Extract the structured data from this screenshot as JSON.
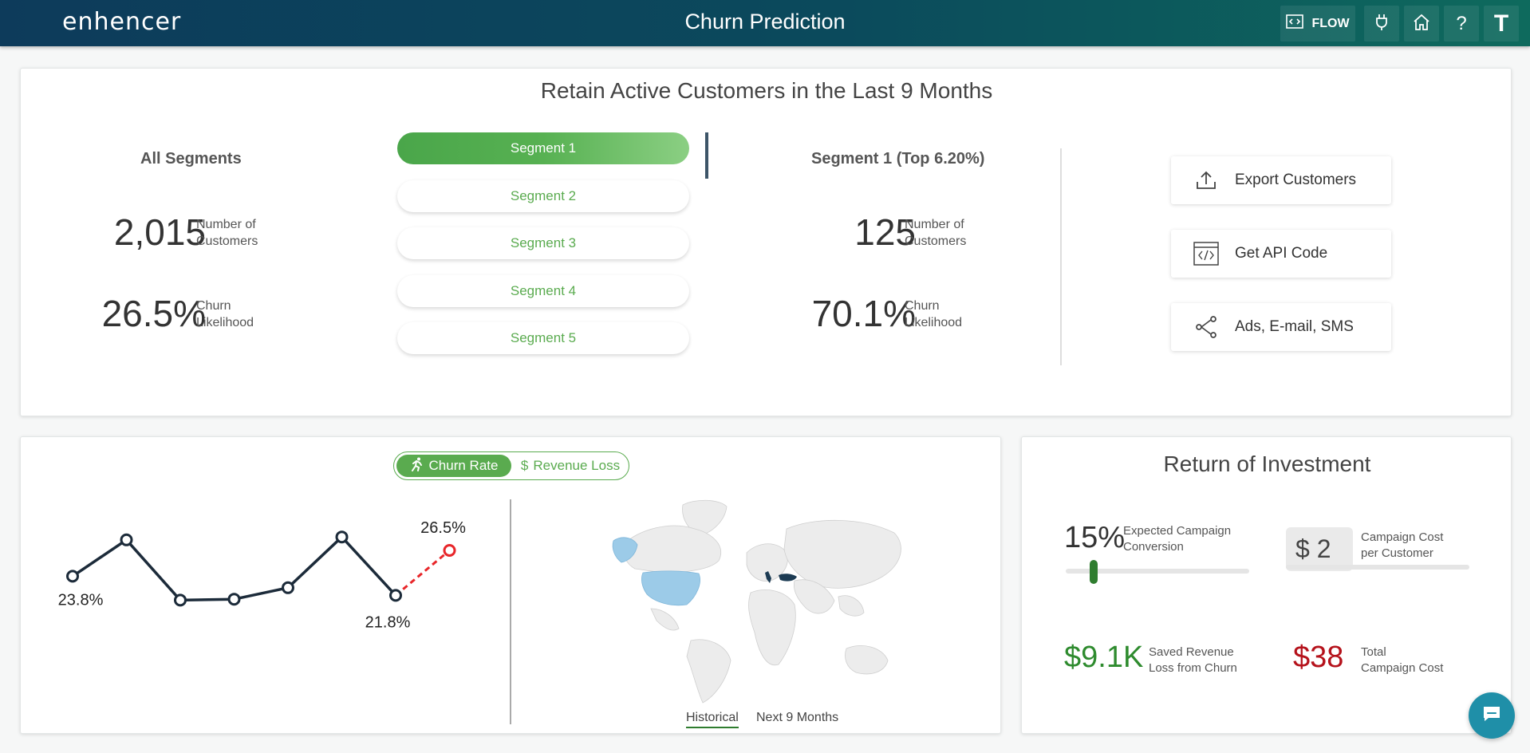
{
  "header": {
    "logo": "enhencer",
    "title": "Churn Prediction",
    "flow_label": "FLOW",
    "help_label": "?",
    "user_initial": "T"
  },
  "overview": {
    "title": "Retain Active Customers in the Last 9 Months",
    "all": {
      "heading": "All Segments",
      "customers_value": "2,015",
      "customers_label_1": "Number of",
      "customers_label_2": "Customers",
      "churn_value": "26.5%",
      "churn_label_1": "Churn",
      "churn_label_2": "Likelihood"
    },
    "segments": [
      "Segment 1",
      "Segment 2",
      "Segment 3",
      "Segment 4",
      "Segment 5"
    ],
    "active_segment": 0,
    "selected": {
      "heading": "Segment 1 (Top 6.20%)",
      "customers_value": "125",
      "customers_label_1": "Number of",
      "customers_label_2": "Customers",
      "churn_value": "70.1%",
      "churn_label_1": "Churn",
      "churn_label_2": "Likelihood"
    },
    "actions": {
      "export": "Export Customers",
      "api": "Get API Code",
      "ads": "Ads, E-mail, SMS"
    }
  },
  "chart_panel": {
    "toggle": {
      "churn_rate": "Churn Rate",
      "revenue_loss_symbol": "$",
      "revenue_loss": "Revenue Loss"
    },
    "map_tabs": {
      "historical": "Historical",
      "next": "Next 9 Months"
    },
    "colors": {
      "line": "#1c2b3a",
      "prediction": "#e8262a",
      "map_highlight_light": "#9ccbe8",
      "map_highlight_dark": "#1c3b53"
    }
  },
  "chart_data": {
    "type": "line",
    "series": [
      {
        "values": [
          23.8,
          27.6,
          21.3,
          21.4,
          22.6,
          27.9,
          21.8
        ]
      },
      {
        "values": [
          21.8,
          26.5
        ]
      }
    ],
    "data_labels": [
      "23.8%",
      "21.8%",
      "26.5%"
    ],
    "grid": false,
    "ylim": [
      20,
      29
    ]
  },
  "roi": {
    "title": "Return of Investment",
    "conversion_value": "15%",
    "conversion_label_1": "Expected Campaign",
    "conversion_label_2": "Conversion",
    "conversion_fraction": 0.15,
    "cost_value": "$ 2",
    "cost_label_1": "Campaign Cost",
    "cost_label_2": "per Customer",
    "saved_value": "$9.1K",
    "saved_label_1": "Saved Revenue",
    "saved_label_2": "Loss from Churn",
    "total_value": "$38",
    "total_label_1": "Total",
    "total_label_2": "Campaign Cost",
    "colors": {
      "saved": "#2e8b2e",
      "total": "#b5121b"
    }
  }
}
